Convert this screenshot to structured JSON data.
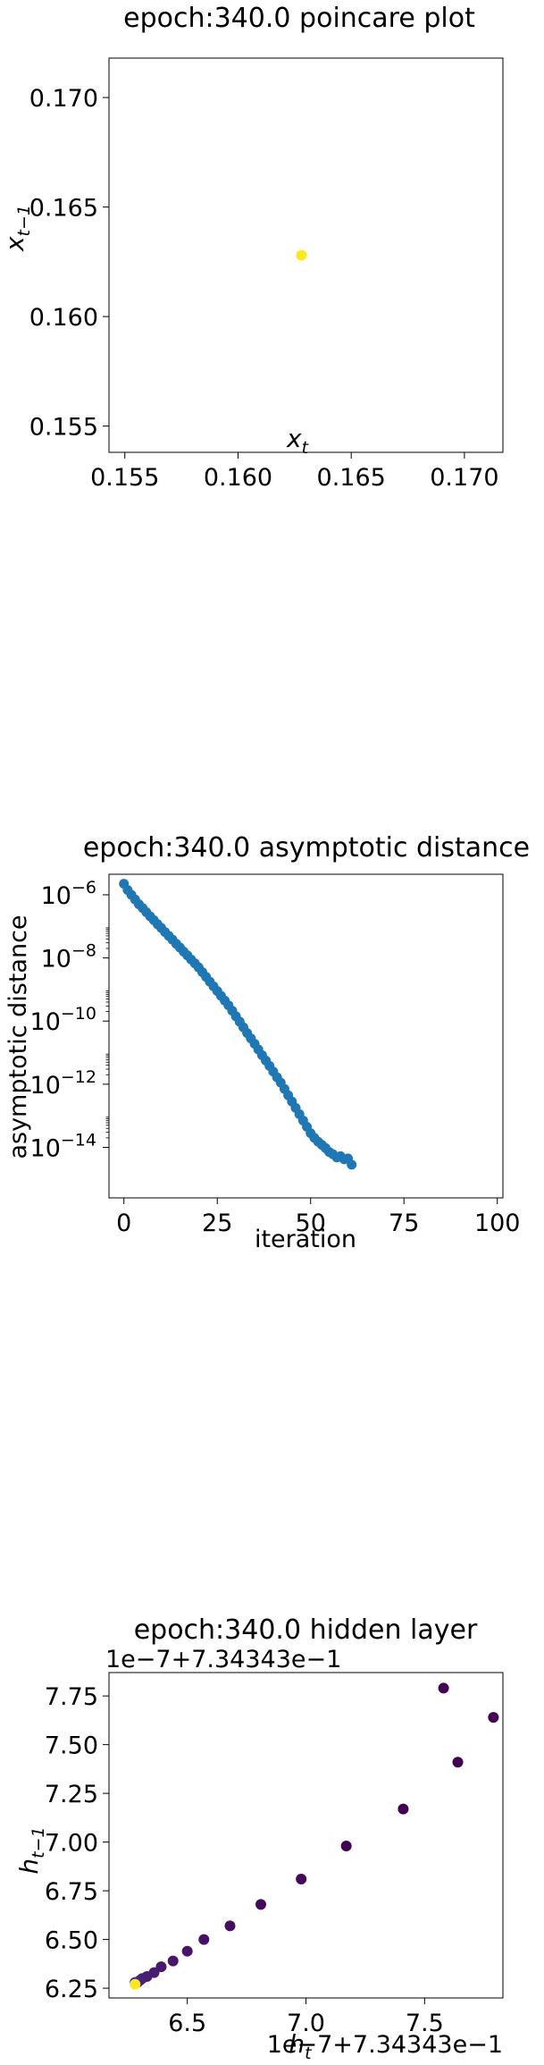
{
  "chart_data": [
    {
      "type": "scatter",
      "title": "epoch:340.0 poincare plot",
      "xlabel": "x",
      "xlabel_sub": "t",
      "ylabel": "x",
      "ylabel_sub": "t−1",
      "xlim": [
        0.1543,
        0.1717
      ],
      "ylim": [
        0.1538,
        0.1718
      ],
      "xticks": [
        0.155,
        0.16,
        0.165,
        0.17
      ],
      "xtick_labels": [
        "0.155",
        "0.160",
        "0.165",
        "0.170"
      ],
      "yticks": [
        0.155,
        0.16,
        0.165,
        0.17
      ],
      "ytick_labels": [
        "0.155",
        "0.160",
        "0.165",
        "0.170"
      ],
      "points": [
        {
          "x": 0.1628,
          "y": 0.1628
        }
      ],
      "point_color": "#fde725"
    },
    {
      "type": "scatter",
      "title": "epoch:340.0 asymptotic distance",
      "xlabel": "iteration",
      "ylabel": "asymptotic distance",
      "yscale": "log",
      "xlim": [
        -4,
        101.5
      ],
      "ylim_log10": [
        -15.6,
        -5.35
      ],
      "xticks": [
        0,
        25,
        50,
        75,
        100
      ],
      "xtick_labels": [
        "0",
        "25",
        "50",
        "75",
        "100"
      ],
      "yticks_log10": [
        -14,
        -12,
        -10,
        -8,
        -6
      ],
      "ytick_base": "10",
      "ytick_exponents": [
        "−14",
        "−12",
        "−10",
        "−8",
        "−6"
      ],
      "point_color": "#1f77b4",
      "log10_values": [
        -5.65,
        -5.85,
        -6.0,
        -6.15,
        -6.3,
        -6.42,
        -6.55,
        -6.68,
        -6.8,
        -6.93,
        -7.05,
        -7.18,
        -7.3,
        -7.42,
        -7.55,
        -7.67,
        -7.8,
        -7.92,
        -8.05,
        -8.17,
        -8.3,
        -8.45,
        -8.6,
        -8.75,
        -8.9,
        -9.05,
        -9.2,
        -9.35,
        -9.5,
        -9.67,
        -9.85,
        -10.02,
        -10.2,
        -10.38,
        -10.55,
        -10.72,
        -10.9,
        -11.08,
        -11.25,
        -11.42,
        -11.6,
        -11.78,
        -11.95,
        -12.15,
        -12.35,
        -12.55,
        -12.75,
        -12.95,
        -13.15,
        -13.35,
        -13.55,
        -13.7,
        -13.82,
        -13.92,
        -14.02,
        -14.15,
        -14.22,
        -14.32,
        -14.28,
        -14.38,
        -14.35,
        -14.55
      ]
    },
    {
      "type": "scatter",
      "title": "epoch:340.0 hidden layer",
      "xlabel": "h",
      "xlabel_sub": "t",
      "ylabel": "h",
      "ylabel_sub": "t−1",
      "y_offset_label": "1e−7+7.34343e−1",
      "x_offset_label": "1e−7+7.34343e−1",
      "xlim": [
        6.17,
        7.83
      ],
      "ylim": [
        6.2,
        7.87
      ],
      "xticks": [
        6.5,
        7.0,
        7.5
      ],
      "xtick_labels": [
        "6.5",
        "7.0",
        "7.5"
      ],
      "yticks": [
        6.25,
        6.5,
        6.75,
        7.0,
        7.25,
        7.5,
        7.75
      ],
      "ytick_labels": [
        "6.25",
        "6.50",
        "6.75",
        "7.00",
        "7.25",
        "7.50",
        "7.75"
      ],
      "points": [
        {
          "x": 7.58,
          "y": 7.79,
          "color": "#440154"
        },
        {
          "x": 7.79,
          "y": 7.64,
          "color": "#440154"
        },
        {
          "x": 7.64,
          "y": 7.41,
          "color": "#440154"
        },
        {
          "x": 7.41,
          "y": 7.17,
          "color": "#440154"
        },
        {
          "x": 7.17,
          "y": 6.98,
          "color": "#440154"
        },
        {
          "x": 6.98,
          "y": 6.81,
          "color": "#450559"
        },
        {
          "x": 6.81,
          "y": 6.68,
          "color": "#460a5d"
        },
        {
          "x": 6.68,
          "y": 6.57,
          "color": "#460e61"
        },
        {
          "x": 6.57,
          "y": 6.5,
          "color": "#471164"
        },
        {
          "x": 6.5,
          "y": 6.44,
          "color": "#471466"
        },
        {
          "x": 6.44,
          "y": 6.39,
          "color": "#481769"
        },
        {
          "x": 6.39,
          "y": 6.36,
          "color": "#481a6c"
        },
        {
          "x": 6.36,
          "y": 6.33,
          "color": "#481c6e"
        },
        {
          "x": 6.33,
          "y": 6.31,
          "color": "#481f70"
        },
        {
          "x": 6.31,
          "y": 6.3,
          "color": "#482173"
        },
        {
          "x": 6.3,
          "y": 6.29,
          "color": "#482374"
        },
        {
          "x": 6.29,
          "y": 6.28,
          "color": "#482475"
        },
        {
          "x": 6.28,
          "y": 6.28,
          "color": "#472d7b"
        },
        {
          "x": 6.28,
          "y": 6.27,
          "color": "#fde725"
        }
      ]
    }
  ]
}
